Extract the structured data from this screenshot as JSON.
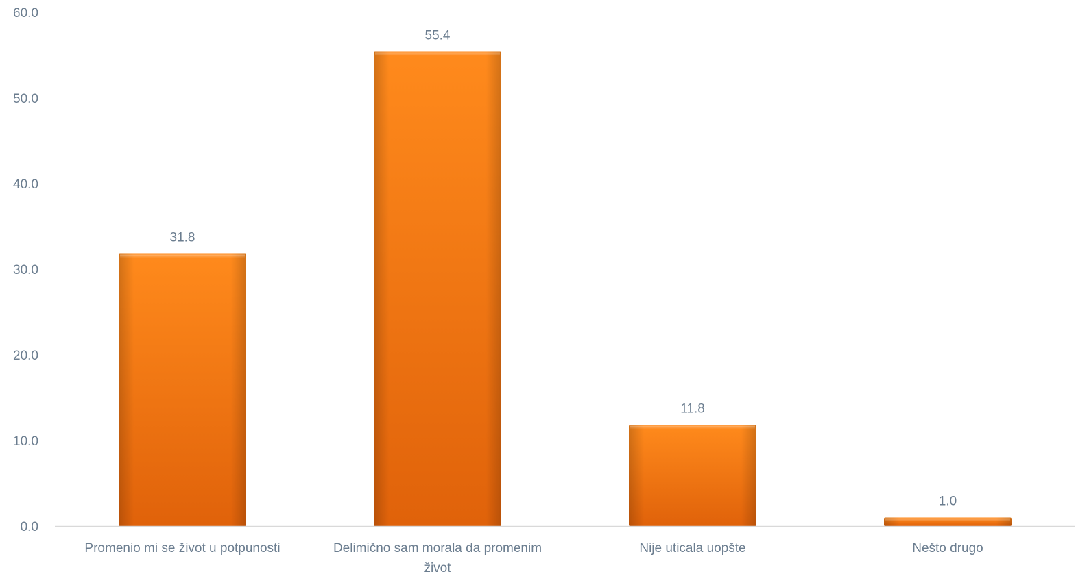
{
  "chart_data": {
    "type": "bar",
    "title": "",
    "xlabel": "",
    "ylabel": "",
    "categories": [
      [
        "Promenio mi se život u potpunosti"
      ],
      [
        "Delimično sam morala da promenim",
        "život"
      ],
      [
        "Nije uticala uopšte"
      ],
      [
        "Nešto drugo"
      ]
    ],
    "values": [
      31.8,
      55.4,
      11.8,
      1.0
    ],
    "value_labels": [
      "31.8",
      "55.4",
      "11.8",
      "1.0"
    ],
    "ylim": [
      0,
      60
    ],
    "yticks": [
      "0.0",
      "10.0",
      "20.0",
      "30.0",
      "40.0",
      "50.0",
      "60.0"
    ],
    "grid": false,
    "legend": "none",
    "colors": {
      "bar_light": "#ff8a1c",
      "bar_mid": "#f87a0c",
      "bar_dark": "#d9620a",
      "axis_line": "#d9d9d9",
      "text": "#6b7d8f"
    }
  }
}
